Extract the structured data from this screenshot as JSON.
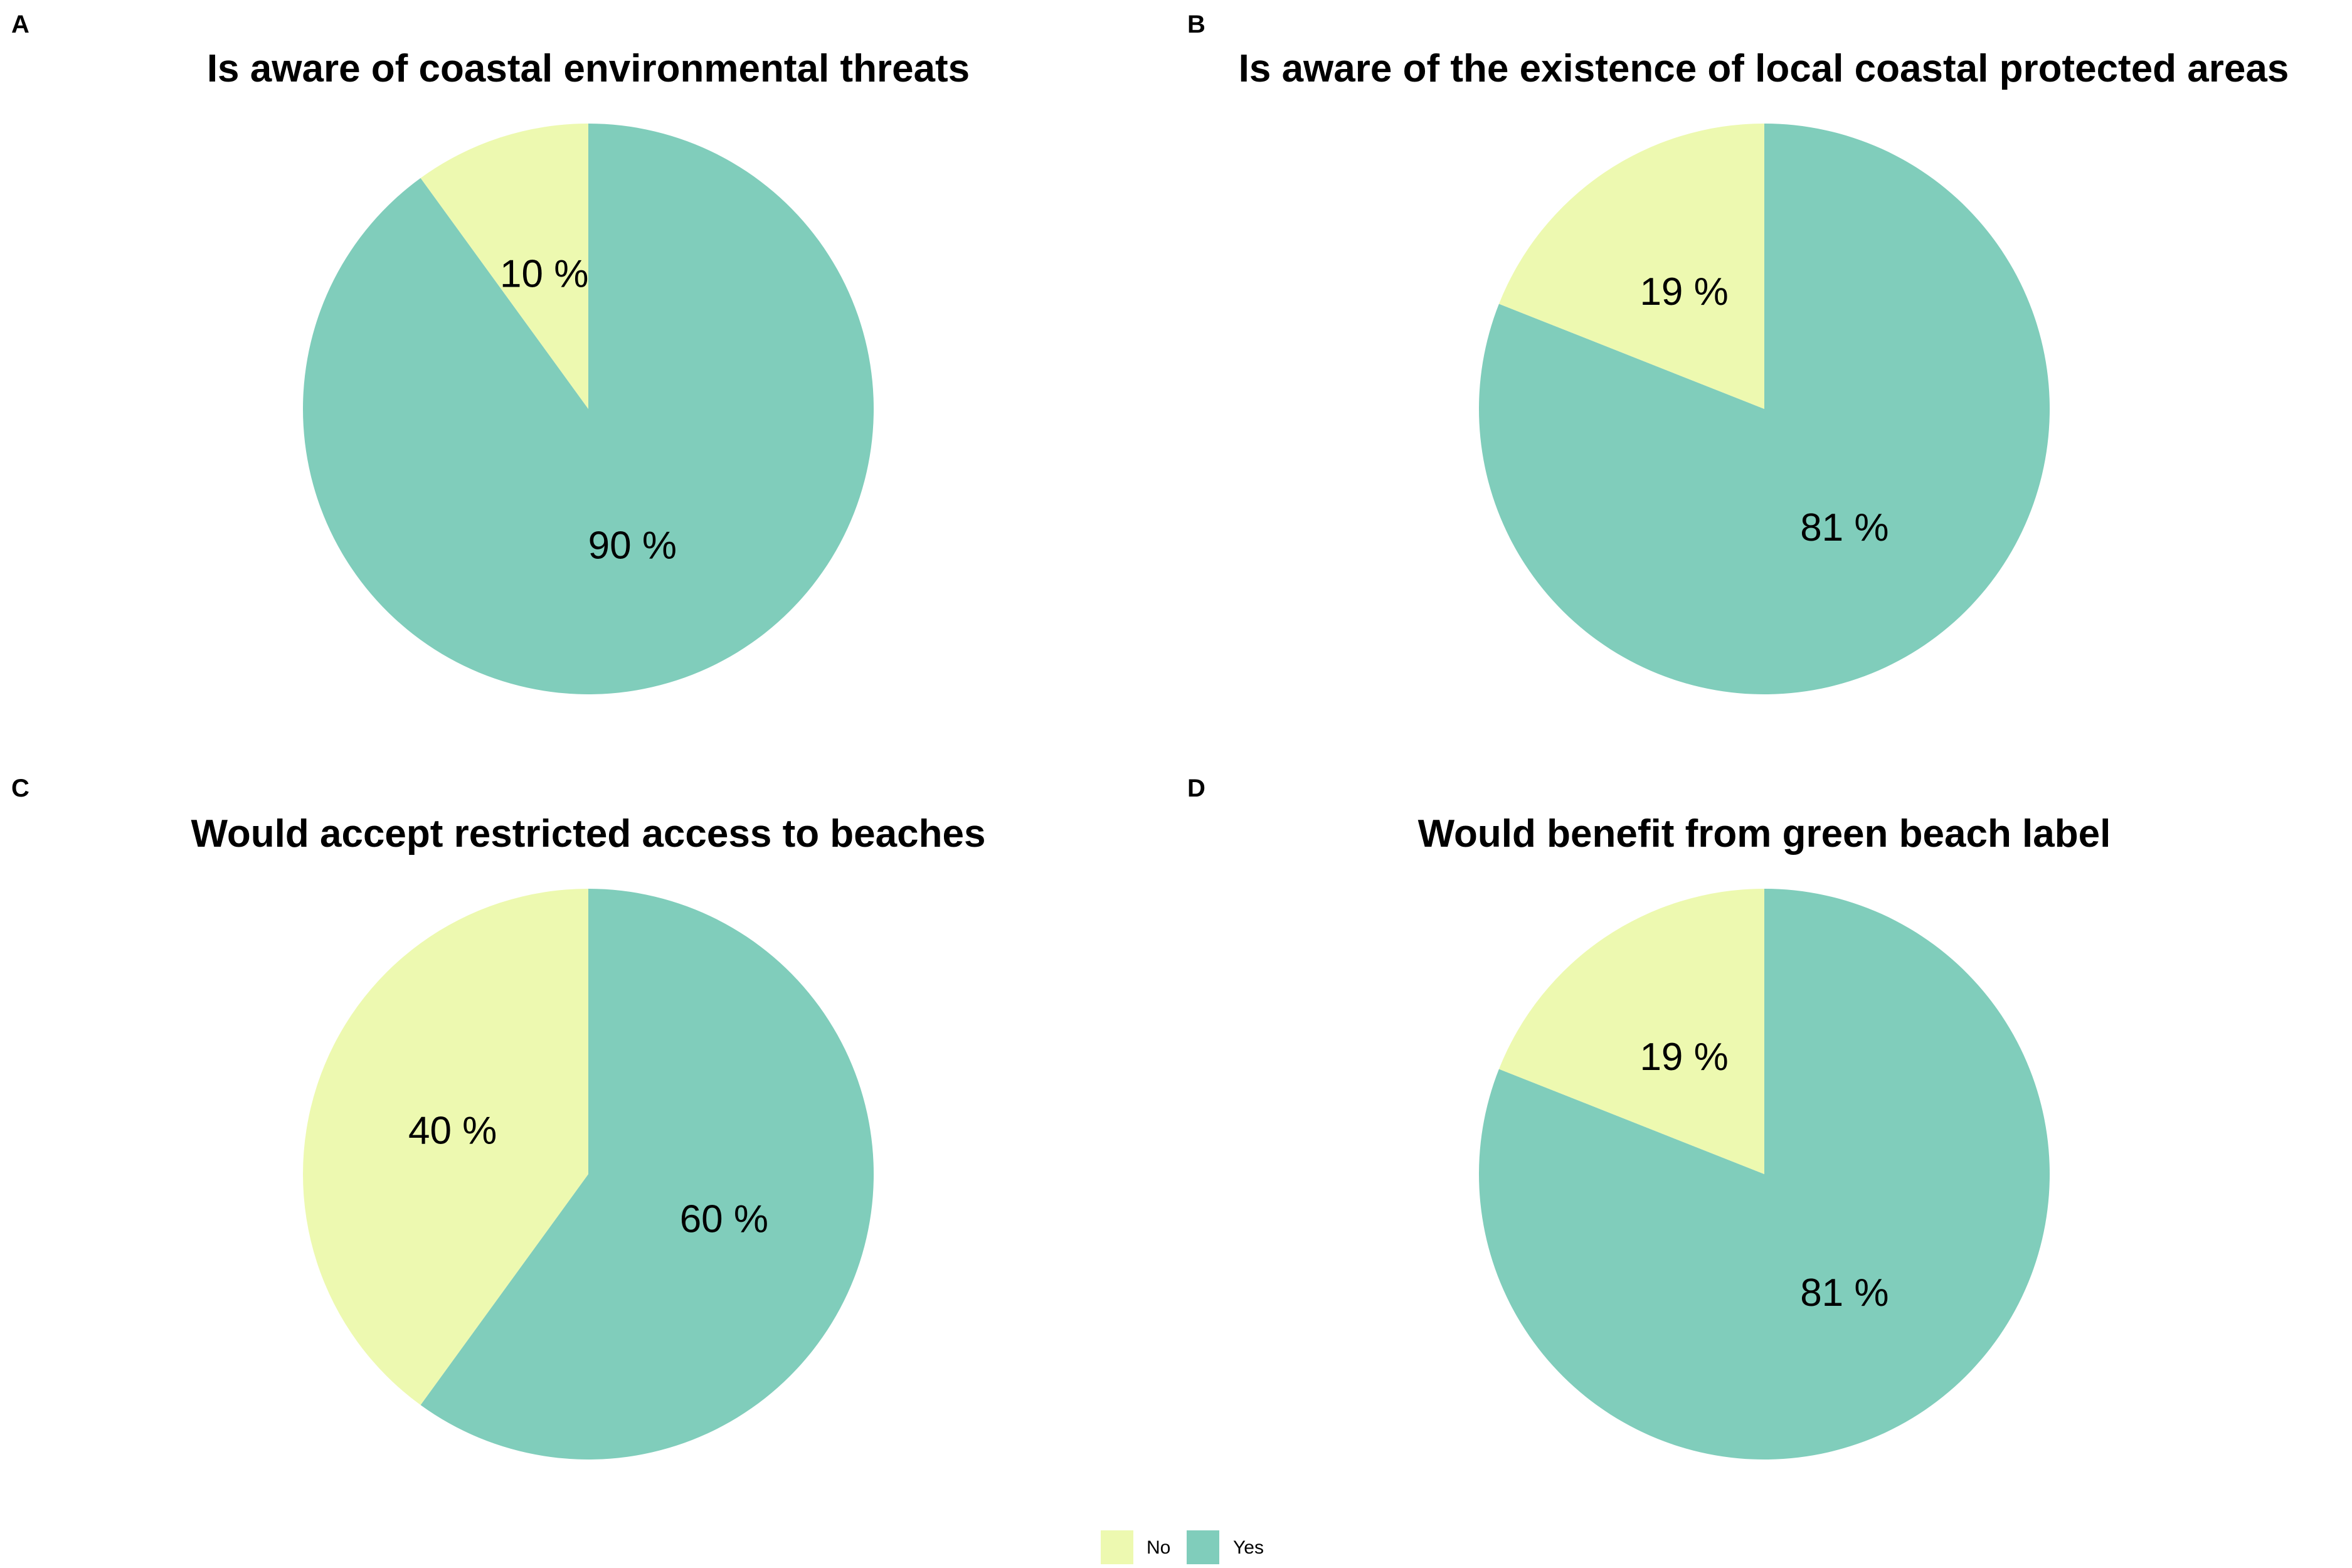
{
  "colors": {
    "No": "#EDF9B0",
    "Yes": "#80CDBB"
  },
  "legend": {
    "items": [
      "No",
      "Yes"
    ],
    "placement": "bottom-center"
  },
  "chart_data": [
    {
      "type": "pie",
      "panel": "A",
      "title": "Is aware of coastal environmental threats",
      "categories": [
        "No",
        "Yes"
      ],
      "values": [
        10,
        90
      ],
      "labels": [
        "10 %",
        "90 %"
      ]
    },
    {
      "type": "pie",
      "panel": "B",
      "title": "Is aware of the existence of local coastal protected areas",
      "categories": [
        "No",
        "Yes"
      ],
      "values": [
        19,
        81
      ],
      "labels": [
        "19 %",
        "81 %"
      ]
    },
    {
      "type": "pie",
      "panel": "C",
      "title": "Would accept restricted access to beaches",
      "categories": [
        "No",
        "Yes"
      ],
      "values": [
        40,
        60
      ],
      "labels": [
        "40 %",
        "60 %"
      ]
    },
    {
      "type": "pie",
      "panel": "D",
      "title": "Would benefit from green beach label",
      "categories": [
        "No",
        "Yes"
      ],
      "values": [
        19,
        81
      ],
      "labels": [
        "19 %",
        "81 %"
      ]
    }
  ]
}
